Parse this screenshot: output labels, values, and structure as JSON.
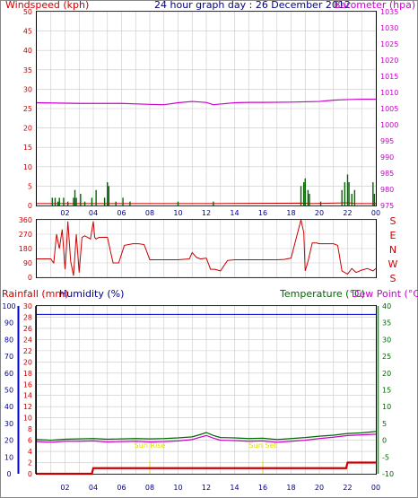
{
  "header": {
    "left_label": "Windspeed (kph)",
    "title": "24 hour graph day : 26 December 2012",
    "right_label": "Barometer (hpa)"
  },
  "colors": {
    "red": "#cc0000",
    "magenta": "#cc00cc",
    "navy": "#000080",
    "blue": "#0000cc",
    "green": "#006600",
    "lightgreen": "#00aa00",
    "yellow": "#dddd00",
    "grid": "#c8c8c8"
  },
  "chart_data": [
    {
      "type": "line",
      "name": "wind-baro",
      "x_ticks": [
        "02",
        "04",
        "06",
        "08",
        "10",
        "12",
        "14",
        "16",
        "18",
        "20",
        "22",
        "00"
      ],
      "left_axis": {
        "ticks": [
          "0",
          "5",
          "10",
          "15",
          "20",
          "25",
          "30",
          "35",
          "40",
          "45",
          "50"
        ],
        "ylim": [
          0,
          50
        ]
      },
      "right_axis": {
        "ticks": [
          "975",
          "980",
          "985",
          "990",
          "995",
          "1000",
          "1005",
          "1010",
          "1015",
          "1020",
          "1025",
          "1030",
          "1035"
        ],
        "ylim": [
          975,
          1035
        ]
      },
      "barometer": {
        "x": [
          0,
          3,
          6,
          8,
          9,
          10,
          11,
          12,
          12.5,
          13,
          14,
          15,
          16,
          18,
          20,
          21,
          22,
          23,
          24
        ],
        "y": [
          1006.8,
          1006.6,
          1006.6,
          1006.3,
          1006.2,
          1006.8,
          1007.2,
          1006.9,
          1006.2,
          1006.4,
          1006.8,
          1006.9,
          1006.9,
          1007.0,
          1007.2,
          1007.6,
          1007.8,
          1007.9,
          1007.9
        ]
      },
      "wind_gusts": {
        "x": [
          1.1,
          1.3,
          1.5,
          1.6,
          1.9,
          2.2,
          2.6,
          2.7,
          2.8,
          3.1,
          3.4,
          3.9,
          4.2,
          4.8,
          5.0,
          5.1,
          5.6,
          6.1,
          6.6,
          10.0,
          12.5,
          18.7,
          18.9,
          19.0,
          19.2,
          19.3,
          20.1,
          21.6,
          21.8,
          22.0,
          22.1,
          22.3,
          22.5,
          23.8,
          23.9
        ],
        "y": [
          2,
          2,
          1,
          2,
          2,
          1,
          2,
          4,
          2,
          3,
          1,
          2,
          4,
          2,
          6,
          5,
          1,
          2,
          1,
          1,
          1,
          5,
          6,
          7,
          4,
          3,
          1,
          4,
          6,
          8,
          6,
          3,
          4,
          6,
          3
        ]
      },
      "wind_avg": {
        "x": [
          0,
          1.2,
          1.6,
          2.8,
          3.2,
          4.9,
          5.3,
          10,
          12.5,
          18.8,
          19.5,
          22,
          22.6,
          24
        ],
        "y": [
          0.5,
          0.5,
          0.5,
          0.5,
          0.5,
          0.5,
          0.5,
          0.5,
          0.5,
          0.6,
          0.5,
          0.7,
          0.5,
          0.5
        ]
      }
    },
    {
      "type": "line",
      "name": "wind-direction",
      "left_axis": {
        "ticks": [
          "0",
          "90",
          "180",
          "270",
          "360"
        ],
        "ylim": [
          0,
          360
        ]
      },
      "right_labels": [
        "S",
        "E",
        "N",
        "W",
        "S"
      ],
      "direction": {
        "x": [
          0,
          1.0,
          1.1,
          1.2,
          1.4,
          1.6,
          1.8,
          2.0,
          2.1,
          2.2,
          2.4,
          2.6,
          2.8,
          3.0,
          3.2,
          3.4,
          3.6,
          3.8,
          4.0,
          4.1,
          4.2,
          4.4,
          4.6,
          5.0,
          5.4,
          5.8,
          6.2,
          6.8,
          7.2,
          7.6,
          8.0,
          9.0,
          10.0,
          10.8,
          11.0,
          11.3,
          11.6,
          12.0,
          12.3,
          12.6,
          13.0,
          13.5,
          14,
          15,
          16,
          17,
          17.5,
          18.0,
          18.7,
          18.9,
          19.0,
          19.2,
          19.5,
          19.8,
          20.0,
          20.5,
          21.0,
          21.3,
          21.6,
          22.0,
          22.3,
          22.6,
          23.0,
          23.4,
          23.8,
          24.0
        ],
        "y": [
          115,
          115,
          100,
          90,
          270,
          180,
          300,
          50,
          180,
          350,
          100,
          10,
          270,
          30,
          250,
          260,
          250,
          240,
          350,
          250,
          240,
          250,
          250,
          250,
          90,
          90,
          200,
          210,
          210,
          205,
          110,
          110,
          110,
          115,
          155,
          125,
          115,
          120,
          50,
          50,
          40,
          105,
          110,
          110,
          110,
          110,
          112,
          120,
          360,
          280,
          40,
          100,
          215,
          215,
          210,
          210,
          210,
          200,
          40,
          20,
          55,
          30,
          45,
          55,
          40,
          55
        ]
      }
    },
    {
      "type": "line",
      "name": "rain-hum-temp",
      "header_left": "Rainfall (mm)",
      "header_left2": "Humidity (%)",
      "header_right": "Temperature (°C)",
      "header_right2": "Dew Point (°C)",
      "humidity_axis": {
        "ticks": [
          "0",
          "10",
          "20",
          "30",
          "40",
          "50",
          "60",
          "70",
          "80",
          "90",
          "100"
        ],
        "ylim": [
          0,
          100
        ]
      },
      "rain_axis": {
        "ticks": [
          "0",
          "2",
          "4",
          "6",
          "8",
          "10",
          "12",
          "14",
          "16",
          "18",
          "20",
          "22",
          "24",
          "26",
          "28",
          "30"
        ],
        "ylim": [
          0,
          30
        ]
      },
      "temp_axis": {
        "ticks": [
          "-10",
          "-5",
          "0",
          "5",
          "10",
          "15",
          "20",
          "25",
          "30",
          "35",
          "40"
        ],
        "ylim": [
          -10,
          40
        ]
      },
      "x_ticks": [
        "02",
        "04",
        "06",
        "08",
        "10",
        "12",
        "14",
        "16",
        "18",
        "20",
        "22",
        "00"
      ],
      "sun_rise_label": "Sun Rise",
      "sun_set_label": "Sun Set",
      "sun_rise_x": 8.0,
      "sun_set_x": 16.0,
      "humidity": {
        "x": [
          0,
          24
        ],
        "y": [
          95,
          95
        ]
      },
      "rainfall": {
        "x": [
          0,
          3.9,
          4.0,
          21.9,
          22.0,
          24
        ],
        "y": [
          0,
          0,
          1,
          1,
          2,
          2
        ]
      },
      "temperature": {
        "x": [
          0,
          1,
          2,
          3,
          4,
          5,
          6,
          7,
          8,
          9,
          10,
          11,
          11.5,
          12,
          12.5,
          13,
          14,
          15,
          16,
          17,
          18,
          19,
          20,
          21,
          22,
          23,
          24
        ],
        "y": [
          0.2,
          0.0,
          0.3,
          0.4,
          0.5,
          0.3,
          0.4,
          0.5,
          0.4,
          0.5,
          0.7,
          1.0,
          1.6,
          2.3,
          1.4,
          0.8,
          0.7,
          0.5,
          0.6,
          0.2,
          0.5,
          0.8,
          1.2,
          1.5,
          2.0,
          2.2,
          2.6
        ]
      },
      "dewpoint": {
        "x": [
          0,
          1,
          2,
          3,
          4,
          5,
          6,
          7,
          8,
          9,
          10,
          11,
          11.5,
          12,
          12.5,
          13,
          14,
          15,
          16,
          17,
          18,
          19,
          20,
          21,
          22,
          23,
          24
        ],
        "y": [
          -0.4,
          -0.6,
          -0.3,
          -0.3,
          -0.2,
          -0.5,
          -0.4,
          -0.3,
          -0.5,
          -0.4,
          -0.2,
          0.2,
          0.8,
          1.4,
          0.6,
          0.0,
          -0.1,
          -0.3,
          -0.2,
          -0.6,
          -0.3,
          0.0,
          0.5,
          0.9,
          1.4,
          1.6,
          1.8
        ]
      }
    }
  ]
}
